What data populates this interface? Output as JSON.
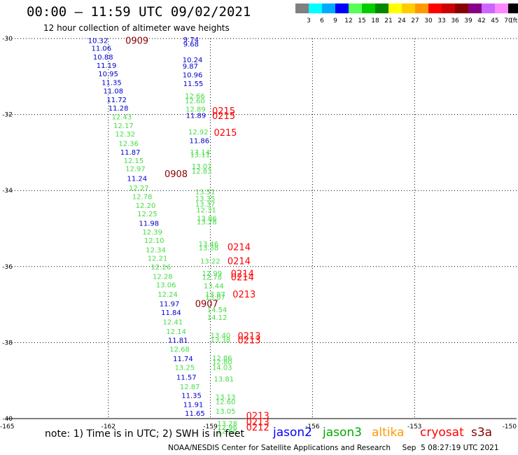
{
  "header": {
    "title": "00:00 – 11:59 UTC 09/02/2021",
    "subtitle": "12 hour collection of altimeter wave heights"
  },
  "colorbar": {
    "labels": [
      "3",
      "6",
      "9",
      "12",
      "15",
      "18",
      "21",
      "24",
      "27",
      "30",
      "33",
      "36",
      "39",
      "42",
      "45",
      "70",
      "(ft)"
    ],
    "colors": [
      "#808080",
      "#00ffff",
      "#00aaff",
      "#0000ff",
      "#55ff55",
      "#00cc00",
      "#008800",
      "#ffff00",
      "#ffcc00",
      "#ff9900",
      "#ff0000",
      "#cc0000",
      "#880000",
      "#880088",
      "#cc66ff",
      "#ff88ff",
      "#000000"
    ]
  },
  "footer": {
    "note": "note:  1) Time is in UTC;  2) SWH is in feet",
    "credit": "NOAA/NESDIS Center for Satellite Applications and Research     Sep  5 08:27:19 UTC 2021",
    "satellites": [
      {
        "name": "jason2",
        "color": "#0000ff"
      },
      {
        "name": "jason3",
        "color": "#00aa00"
      },
      {
        "name": "altika",
        "color": "#ff9900"
      },
      {
        "name": "cryosat",
        "color": "#ff0000"
      },
      {
        "name": "s3a",
        "color": "#880000"
      }
    ]
  },
  "chart_data": {
    "type": "scatter",
    "xlim": [
      -165,
      -150
    ],
    "ylim": [
      -40,
      -30
    ],
    "xticks": [
      "-165",
      "-162",
      "-159",
      "-156",
      "-153",
      "-150"
    ],
    "yticks": [
      "-30",
      "-32",
      "-34",
      "-36",
      "-38",
      "-40"
    ],
    "grid": "dotted",
    "colors": {
      "blue": "#0000cc",
      "green": "#44dd44",
      "red": "#ff0000",
      "maroon": "#880000"
    },
    "points": [
      {
        "lon": -162.6,
        "lat": -30.05,
        "v": "10.32",
        "c": "blue"
      },
      {
        "lon": -162.5,
        "lat": -30.25,
        "v": "11.06",
        "c": "blue"
      },
      {
        "lon": -162.45,
        "lat": -30.48,
        "v": "10.88",
        "c": "blue"
      },
      {
        "lon": -162.35,
        "lat": -30.7,
        "v": "11.19",
        "c": "blue"
      },
      {
        "lon": -162.3,
        "lat": -30.92,
        "v": "10.95",
        "c": "blue"
      },
      {
        "lon": -162.2,
        "lat": -31.15,
        "v": "11.35",
        "c": "blue"
      },
      {
        "lon": -162.15,
        "lat": -31.37,
        "v": "11.08",
        "c": "blue"
      },
      {
        "lon": -162.05,
        "lat": -31.6,
        "v": "11.72",
        "c": "blue"
      },
      {
        "lon": -162.0,
        "lat": -31.82,
        "v": "11.28",
        "c": "blue"
      },
      {
        "lon": -161.9,
        "lat": -32.05,
        "v": "12.43",
        "c": "green"
      },
      {
        "lon": -161.85,
        "lat": -32.28,
        "v": "12.17",
        "c": "green"
      },
      {
        "lon": -161.8,
        "lat": -32.5,
        "v": "12.32",
        "c": "green"
      },
      {
        "lon": -161.7,
        "lat": -32.75,
        "v": "12.36",
        "c": "green"
      },
      {
        "lon": -161.65,
        "lat": -32.98,
        "v": "11.87",
        "c": "blue"
      },
      {
        "lon": -161.55,
        "lat": -33.2,
        "v": "12.15",
        "c": "green"
      },
      {
        "lon": -161.5,
        "lat": -33.42,
        "v": "12.97",
        "c": "green"
      },
      {
        "lon": -161.45,
        "lat": -33.67,
        "v": "11.24",
        "c": "blue"
      },
      {
        "lon": -161.4,
        "lat": -33.92,
        "v": "12.27",
        "c": "green"
      },
      {
        "lon": -161.3,
        "lat": -34.15,
        "v": "12.78",
        "c": "green"
      },
      {
        "lon": -161.2,
        "lat": -34.38,
        "v": "12.20",
        "c": "green"
      },
      {
        "lon": -161.15,
        "lat": -34.6,
        "v": "12.25",
        "c": "green"
      },
      {
        "lon": -161.1,
        "lat": -34.85,
        "v": "11.98",
        "c": "blue"
      },
      {
        "lon": -161.0,
        "lat": -35.08,
        "v": "12.39",
        "c": "green"
      },
      {
        "lon": -160.95,
        "lat": -35.3,
        "v": "12.10",
        "c": "green"
      },
      {
        "lon": -160.9,
        "lat": -35.55,
        "v": "12.34",
        "c": "green"
      },
      {
        "lon": -160.85,
        "lat": -35.77,
        "v": "12.21",
        "c": "green"
      },
      {
        "lon": -160.75,
        "lat": -36.0,
        "v": "12.26",
        "c": "green"
      },
      {
        "lon": -160.7,
        "lat": -36.25,
        "v": "12.28",
        "c": "green"
      },
      {
        "lon": -160.6,
        "lat": -36.47,
        "v": "13.06",
        "c": "green"
      },
      {
        "lon": -160.55,
        "lat": -36.72,
        "v": "12.24",
        "c": "green"
      },
      {
        "lon": -160.5,
        "lat": -36.97,
        "v": "11.97",
        "c": "blue"
      },
      {
        "lon": -160.45,
        "lat": -37.2,
        "v": "11.84",
        "c": "blue"
      },
      {
        "lon": -160.4,
        "lat": -37.45,
        "v": "12.41",
        "c": "green"
      },
      {
        "lon": -160.3,
        "lat": -37.7,
        "v": "12.14",
        "c": "green"
      },
      {
        "lon": -160.25,
        "lat": -37.93,
        "v": "11.81",
        "c": "blue"
      },
      {
        "lon": -160.2,
        "lat": -38.17,
        "v": "12.68",
        "c": "green"
      },
      {
        "lon": -160.1,
        "lat": -38.42,
        "v": "11.74",
        "c": "blue"
      },
      {
        "lon": -160.05,
        "lat": -38.65,
        "v": "13.25",
        "c": "green"
      },
      {
        "lon": -160.0,
        "lat": -38.9,
        "v": "11.57",
        "c": "blue"
      },
      {
        "lon": -159.9,
        "lat": -39.15,
        "v": "12.87",
        "c": "green"
      },
      {
        "lon": -159.85,
        "lat": -39.38,
        "v": "11.35",
        "c": "blue"
      },
      {
        "lon": -159.8,
        "lat": -39.62,
        "v": "11.91",
        "c": "blue"
      },
      {
        "lon": -159.75,
        "lat": -39.85,
        "v": "11.65",
        "c": "blue"
      },
      {
        "lon": -159.8,
        "lat": -30.02,
        "v": "9.74",
        "c": "blue"
      },
      {
        "lon": -159.8,
        "lat": -30.14,
        "v": "9.68",
        "c": "blue"
      },
      {
        "lon": -159.82,
        "lat": -30.55,
        "v": "10.24",
        "c": "blue"
      },
      {
        "lon": -159.82,
        "lat": -30.72,
        "v": "9.87",
        "c": "blue"
      },
      {
        "lon": -159.82,
        "lat": -30.95,
        "v": "10.96",
        "c": "blue"
      },
      {
        "lon": -159.8,
        "lat": -31.18,
        "v": "11.55",
        "c": "blue"
      },
      {
        "lon": -159.75,
        "lat": -31.5,
        "v": "12.66",
        "c": "green"
      },
      {
        "lon": -159.75,
        "lat": -31.63,
        "v": "12.60",
        "c": "green"
      },
      {
        "lon": -159.73,
        "lat": -31.85,
        "v": "12.89",
        "c": "green"
      },
      {
        "lon": -159.72,
        "lat": -32.02,
        "v": "11.89",
        "c": "blue"
      },
      {
        "lon": -159.65,
        "lat": -32.45,
        "v": "12.92",
        "c": "green"
      },
      {
        "lon": -159.62,
        "lat": -32.68,
        "v": "11.86",
        "c": "blue"
      },
      {
        "lon": -159.6,
        "lat": -32.98,
        "v": "13.14",
        "c": "green"
      },
      {
        "lon": -159.6,
        "lat": -33.05,
        "v": "13.11",
        "c": "green"
      },
      {
        "lon": -159.55,
        "lat": -33.35,
        "v": "13.07",
        "c": "green"
      },
      {
        "lon": -159.55,
        "lat": -33.48,
        "v": "12.83",
        "c": "green"
      },
      {
        "lon": -159.45,
        "lat": -34.02,
        "v": "13.51",
        "c": "green"
      },
      {
        "lon": -159.45,
        "lat": -34.2,
        "v": "13.35",
        "c": "green"
      },
      {
        "lon": -159.45,
        "lat": -34.35,
        "v": "13.37",
        "c": "green"
      },
      {
        "lon": -159.42,
        "lat": -34.5,
        "v": "12.31",
        "c": "green"
      },
      {
        "lon": -159.4,
        "lat": -34.72,
        "v": "13.86",
        "c": "green"
      },
      {
        "lon": -159.4,
        "lat": -34.82,
        "v": "13.28",
        "c": "green"
      },
      {
        "lon": -159.35,
        "lat": -35.4,
        "v": "13.46",
        "c": "green"
      },
      {
        "lon": -159.35,
        "lat": -35.5,
        "v": "13.38",
        "c": "green"
      },
      {
        "lon": -159.3,
        "lat": -35.85,
        "v": "13.22",
        "c": "green"
      },
      {
        "lon": -159.25,
        "lat": -36.17,
        "v": "12.99",
        "c": "green"
      },
      {
        "lon": -159.25,
        "lat": -36.27,
        "v": "12.78",
        "c": "green"
      },
      {
        "lon": -159.2,
        "lat": -36.5,
        "v": "13.44",
        "c": "green"
      },
      {
        "lon": -159.15,
        "lat": -36.72,
        "v": "13.87",
        "c": "green"
      },
      {
        "lon": -159.15,
        "lat": -36.8,
        "v": "13.07",
        "c": "green"
      },
      {
        "lon": -159.1,
        "lat": -37.13,
        "v": "14.54",
        "c": "green"
      },
      {
        "lon": -159.1,
        "lat": -37.33,
        "v": "14.12",
        "c": "green"
      },
      {
        "lon": -159.0,
        "lat": -37.8,
        "v": "13.40",
        "c": "green"
      },
      {
        "lon": -159.0,
        "lat": -37.92,
        "v": "13.38",
        "c": "green"
      },
      {
        "lon": -158.95,
        "lat": -38.4,
        "v": "12.86",
        "c": "green"
      },
      {
        "lon": -158.95,
        "lat": -38.5,
        "v": "12.80",
        "c": "green"
      },
      {
        "lon": -158.95,
        "lat": -38.65,
        "v": "14.03",
        "c": "green"
      },
      {
        "lon": -158.9,
        "lat": -38.95,
        "v": "13.81",
        "c": "green"
      },
      {
        "lon": -158.85,
        "lat": -39.42,
        "v": "13.13",
        "c": "green"
      },
      {
        "lon": -158.85,
        "lat": -39.55,
        "v": "12.60",
        "c": "green"
      },
      {
        "lon": -158.85,
        "lat": -39.8,
        "v": "13.05",
        "c": "green"
      },
      {
        "lon": -158.8,
        "lat": -40.12,
        "v": "13.28",
        "c": "green"
      },
      {
        "lon": -158.8,
        "lat": -40.22,
        "v": "12.96",
        "c": "green"
      },
      {
        "lon": -158.8,
        "lat": -40.32,
        "v": "12.66",
        "c": "green"
      }
    ],
    "time_labels": [
      {
        "lon": -161.5,
        "lat": -30.05,
        "t": "0909",
        "c": "maroon"
      },
      {
        "lon": -160.35,
        "lat": -33.55,
        "t": "0908",
        "c": "maroon"
      },
      {
        "lon": -159.45,
        "lat": -36.97,
        "t": "0907",
        "c": "maroon"
      },
      {
        "lon": -158.95,
        "lat": -31.9,
        "t": "0215",
        "c": "red"
      },
      {
        "lon": -158.95,
        "lat": -32.03,
        "t": "0215",
        "c": "red"
      },
      {
        "lon": -158.9,
        "lat": -32.47,
        "t": "0215",
        "c": "red"
      },
      {
        "lon": -158.5,
        "lat": -35.48,
        "t": "0214",
        "c": "red"
      },
      {
        "lon": -158.5,
        "lat": -35.85,
        "t": "0214",
        "c": "red"
      },
      {
        "lon": -158.4,
        "lat": -36.18,
        "t": "0214",
        "c": "red"
      },
      {
        "lon": -158.4,
        "lat": -36.27,
        "t": "0214",
        "c": "red"
      },
      {
        "lon": -158.35,
        "lat": -36.72,
        "t": "0213",
        "c": "red"
      },
      {
        "lon": -158.2,
        "lat": -37.82,
        "t": "0213",
        "c": "red"
      },
      {
        "lon": -158.2,
        "lat": -37.93,
        "t": "0213",
        "c": "red"
      },
      {
        "lon": -157.95,
        "lat": -39.92,
        "t": "0213",
        "c": "red"
      },
      {
        "lon": -157.95,
        "lat": -40.08,
        "t": "0213",
        "c": "red"
      },
      {
        "lon": -157.95,
        "lat": -40.22,
        "t": "0212",
        "c": "red"
      }
    ]
  }
}
